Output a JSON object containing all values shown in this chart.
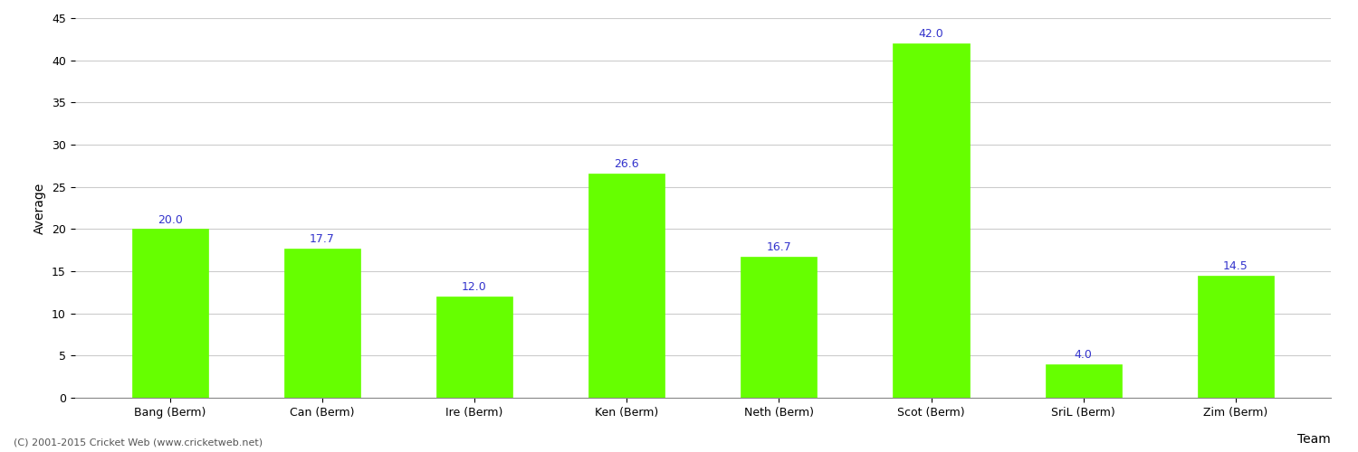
{
  "categories": [
    "Bang (Berm)",
    "Can (Berm)",
    "Ire (Berm)",
    "Ken (Berm)",
    "Neth (Berm)",
    "Scot (Berm)",
    "SriL (Berm)",
    "Zim (Berm)"
  ],
  "values": [
    20.0,
    17.7,
    12.0,
    26.6,
    16.7,
    42.0,
    4.0,
    14.5
  ],
  "bar_color": "#66ff00",
  "bar_edge_color": "#66ff00",
  "value_label_color": "#3333cc",
  "ylabel": "Average",
  "xlabel_right": "Team",
  "ylim": [
    0,
    45
  ],
  "yticks": [
    0,
    5,
    10,
    15,
    20,
    25,
    30,
    35,
    40,
    45
  ],
  "grid_color": "#cccccc",
  "background_color": "#ffffff",
  "footer_text": "(C) 2001-2015 Cricket Web (www.cricketweb.net)",
  "footer_color": "#555555",
  "axis_label_fontsize": 10,
  "tick_fontsize": 9,
  "value_label_fontsize": 9,
  "footer_fontsize": 8
}
